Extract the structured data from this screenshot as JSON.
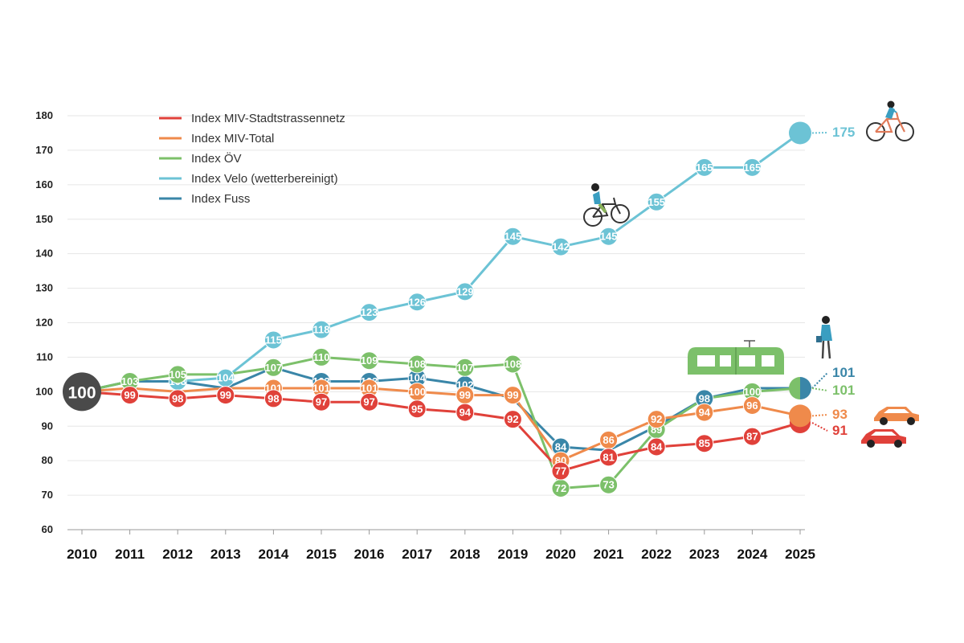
{
  "chart_data": {
    "type": "line",
    "title": "",
    "xlabel": "",
    "ylabel": "",
    "ylim": [
      60,
      180
    ],
    "y_ticks": [
      60,
      70,
      80,
      90,
      100,
      110,
      120,
      130,
      140,
      150,
      160,
      170,
      180
    ],
    "grid": "horizontal",
    "legend_position": "top-left",
    "categories": [
      "2010",
      "2011",
      "2012",
      "2013",
      "2014",
      "2015",
      "2016",
      "2017",
      "2018",
      "2019",
      "2020",
      "2021",
      "2022",
      "2023",
      "2024",
      "2025"
    ],
    "start_marker": {
      "year": "2010",
      "value": 100,
      "label": "100",
      "color": "#4a4a4a"
    },
    "series": [
      {
        "name": "Index MIV-Stadtstrassennetz",
        "color": "#e0413a",
        "values": [
          100,
          99,
          98,
          99,
          98,
          97,
          97,
          95,
          94,
          92,
          77,
          81,
          84,
          85,
          87,
          91
        ],
        "labels": [
          null,
          "99",
          "98",
          "99",
          "98",
          "97",
          "97",
          "95",
          "94",
          "92",
          "77",
          "81",
          "84",
          "85",
          "87",
          null
        ],
        "end_label": "91"
      },
      {
        "name": "Index MIV-Total",
        "color": "#ef8a4b",
        "values": [
          100,
          101,
          100,
          101,
          101,
          101,
          101,
          100,
          99,
          99,
          80,
          86,
          92,
          94,
          96,
          93
        ],
        "labels": [
          null,
          null,
          null,
          null,
          "101",
          "101",
          "101",
          "100",
          "99",
          "99",
          "80",
          "86",
          "92",
          "94",
          "96",
          null
        ],
        "end_label": "93"
      },
      {
        "name": "Index ÖV",
        "color": "#7cc06a",
        "values": [
          100,
          103,
          105,
          105,
          107,
          110,
          109,
          108,
          107,
          108,
          72,
          73,
          89,
          98,
          100,
          101
        ],
        "labels": [
          null,
          "103",
          "105",
          null,
          "107",
          "110",
          "109",
          "108",
          "107",
          "108",
          "72",
          "73",
          "89",
          null,
          "100",
          null
        ],
        "end_label": "101"
      },
      {
        "name": "Index Velo (wetterbereinigt)",
        "color": "#6cc3d5",
        "values": [
          100,
          103,
          103,
          104,
          115,
          118,
          123,
          126,
          129,
          145,
          142,
          145,
          155,
          165,
          165,
          175
        ],
        "labels": [
          null,
          "103",
          "103",
          "104",
          "115",
          "118",
          "123",
          "126",
          "129",
          "145",
          "142",
          "145",
          "155",
          "165",
          "165",
          null
        ],
        "end_label": "175"
      },
      {
        "name": "Index Fuss",
        "color": "#3a86a8",
        "values": [
          100,
          103,
          103,
          101,
          107,
          103,
          103,
          104,
          102,
          98,
          84,
          83,
          90,
          98,
          101,
          101
        ],
        "labels": [
          null,
          null,
          null,
          null,
          null,
          "103",
          "103",
          "104",
          "102",
          null,
          "84",
          null,
          null,
          "98",
          null,
          null
        ],
        "end_label": "101"
      }
    ]
  },
  "icons": {
    "cyclist_top": "cyclist-icon",
    "cyclist_mid": "cyclist-icon",
    "tram": "tram-icon",
    "pedestrian": "pedestrian-icon",
    "car_orange": "car-icon",
    "car_red": "car-icon"
  }
}
